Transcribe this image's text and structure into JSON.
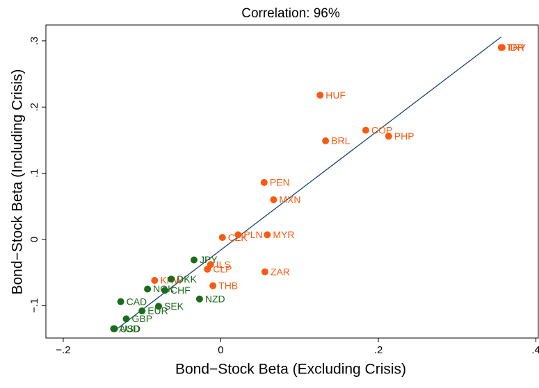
{
  "chart_data": {
    "type": "scatter",
    "title": "Correlation: 96%",
    "x_label": "Bond−Stock Beta (Excluding Crisis)",
    "y_label": "Bond−Stock Beta (Including Crisis)",
    "xlim": [
      -0.222,
      0.403
    ],
    "ylim": [
      -0.149,
      0.324
    ],
    "xticks": [
      {
        "value": -0.2,
        "label": "−.2"
      },
      0,
      {
        "value": 0.2,
        "label": ".2"
      },
      {
        "value": 0.4,
        "label": ".4"
      }
    ],
    "yticks": [
      {
        "value": -0.1,
        "label": "−.1"
      },
      0,
      {
        "value": 0.1,
        "label": ".1"
      },
      {
        "value": 0.2,
        "label": ".2"
      },
      {
        "value": 0.3,
        "label": ".3"
      }
    ],
    "series": [
      {
        "color": "#f95a12",
        "labels": [
          "TRY",
          "IDR",
          "HUF",
          "COP",
          "PHP",
          "BRL",
          "PEN",
          "MXN",
          "PLN",
          "MYR",
          "CZK",
          "ZAR",
          "THB",
          "ILS",
          "CLP",
          "KRW"
        ],
        "x": [
          0.356,
          0.357,
          0.126,
          0.184,
          0.213,
          0.133,
          0.055,
          0.067,
          0.022,
          0.059,
          0.002,
          0.056,
          -0.01,
          -0.013,
          -0.017,
          -0.084
        ],
        "y": [
          0.29,
          0.29,
          0.218,
          0.165,
          0.156,
          0.149,
          0.086,
          0.06,
          0.007,
          0.007,
          0.003,
          -0.049,
          -0.07,
          -0.038,
          -0.045,
          -0.062
        ]
      },
      {
        "color": "#1b6b1b",
        "labels": [
          "JPY",
          "DKK",
          "NOK",
          "CHF",
          "NZD",
          "CAD",
          "SEK",
          "EUR",
          "GBP",
          "AUD",
          "USD"
        ],
        "x": [
          -0.034,
          -0.063,
          -0.093,
          -0.071,
          -0.027,
          -0.127,
          -0.079,
          -0.1,
          -0.12,
          -0.136,
          -0.135
        ],
        "y": [
          -0.031,
          -0.06,
          -0.075,
          -0.077,
          -0.09,
          -0.094,
          -0.101,
          -0.108,
          -0.12,
          -0.135,
          -0.135
        ]
      }
    ],
    "fit_line": {
      "color": "#1a476f",
      "x": [
        -0.136,
        0.356
      ],
      "y": [
        -0.139,
        0.306
      ]
    }
  }
}
